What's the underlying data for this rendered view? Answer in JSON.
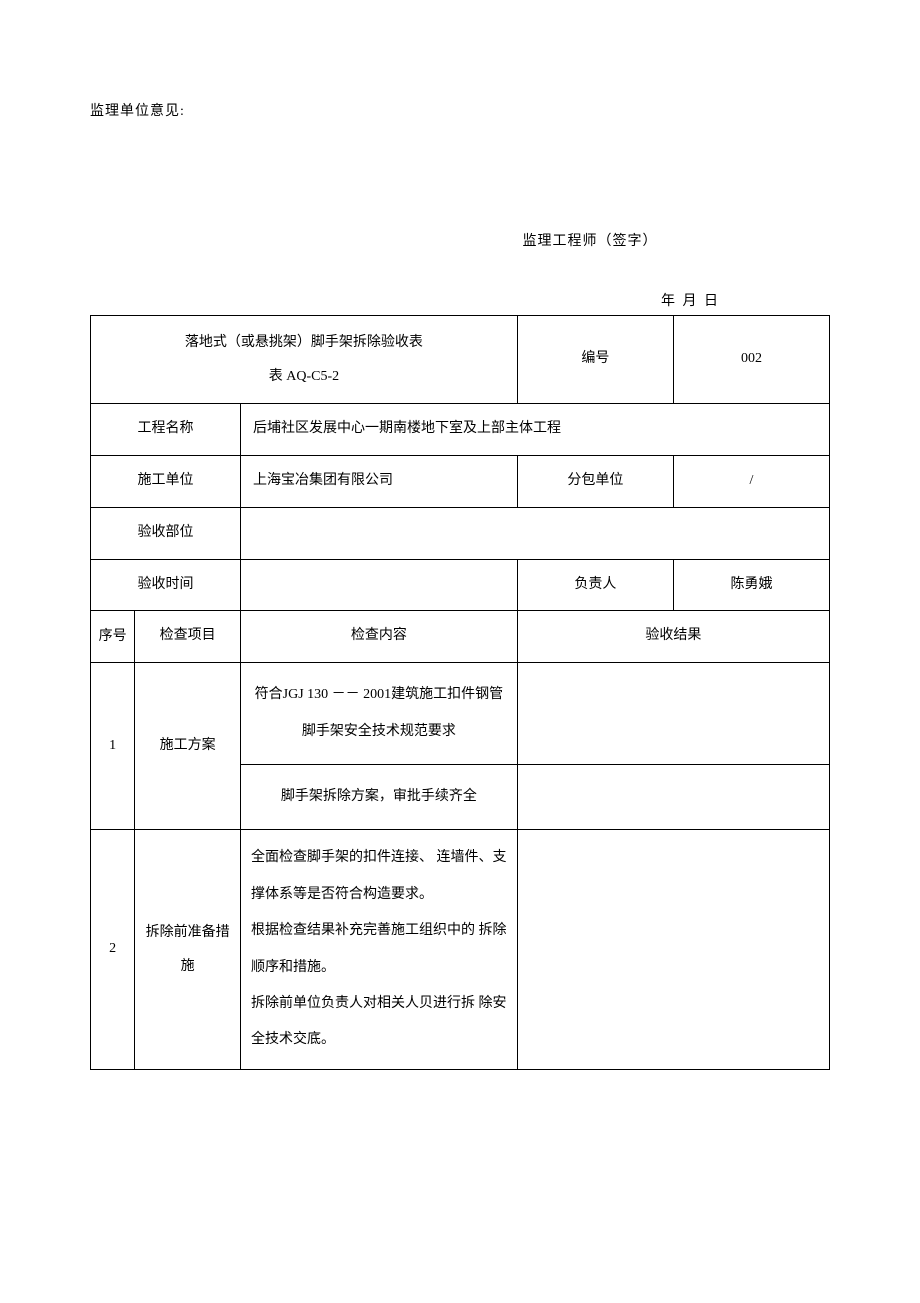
{
  "header": {
    "opinion_label": "监理单位意见:",
    "signature_label": "监理工程师（签字）",
    "date_label": "年 月 日"
  },
  "table": {
    "title_line1": "落地式（或悬挑架）脚手架拆除验收表",
    "title_line2": "表 AQ-C5-2",
    "code_label": "编号",
    "code_value": "002",
    "project_label": "工程名称",
    "project_value": "后埔社区发展中心一期南楼地下室及上部主体工程",
    "contractor_label": "施工单位",
    "contractor_value": "上海宝冶集团有限公司",
    "subcontractor_label": "分包单位",
    "subcontractor_value": "/",
    "accept_part_label": "验收部位",
    "accept_part_value": "",
    "accept_time_label": "验收时间",
    "accept_time_value": "",
    "responsible_label": "负责人",
    "responsible_value": "陈勇娥",
    "seq_header": "序号",
    "item_header": "检查项目",
    "content_header": "检查内容",
    "result_header": "验收结果",
    "rows": [
      {
        "seq": "1",
        "item": "施工方案",
        "content1": "符合JGJ 130 －－ 2001建筑施工扣件钢管脚手架安全技术规范要求",
        "content2": "脚手架拆除方案，审批手续齐全"
      },
      {
        "seq": "2",
        "item": "拆除前准备措施",
        "content": "全面检查脚手架的扣件连接、 连墙件、支撑体系等是否符合构造要求。\n根据检查结果补充完善施工组织中的 拆除顺序和措施。\n拆除前单位负责人对相关人贝进行拆 除安全技术交底。"
      }
    ]
  }
}
